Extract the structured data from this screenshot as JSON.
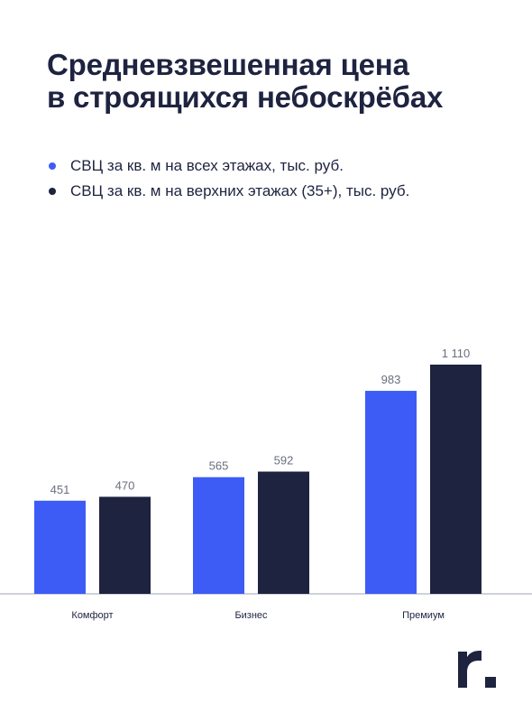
{
  "title_lines": [
    "Средневзвешенная цена",
    "в строящихся небоскрёбах"
  ],
  "colors": {
    "series_all": "#3d5cf5",
    "series_top": "#1e2340",
    "axis": "#cfd2da",
    "text": "#1e2340"
  },
  "chart_data": {
    "type": "bar",
    "title": "Средневзвешенная цена в строящихся небоскрёбах",
    "categories": [
      "Комфорт",
      "Бизнес",
      "Премиум"
    ],
    "series": [
      {
        "name": "СВЦ за кв. м на всех этажах, тыс. руб.",
        "values": [
          451,
          565,
          983
        ],
        "labels": [
          "451",
          "565",
          "983"
        ]
      },
      {
        "name": "СВЦ за кв. м на верхних этажах (35+), тыс. руб.",
        "values": [
          470,
          592,
          1110
        ],
        "labels": [
          "470",
          "592",
          "1 110"
        ]
      }
    ],
    "ylim": [
      0,
      1110
    ],
    "grid": false,
    "legend_position": "top-left"
  },
  "logo_icon": "r-dot-logo-icon"
}
